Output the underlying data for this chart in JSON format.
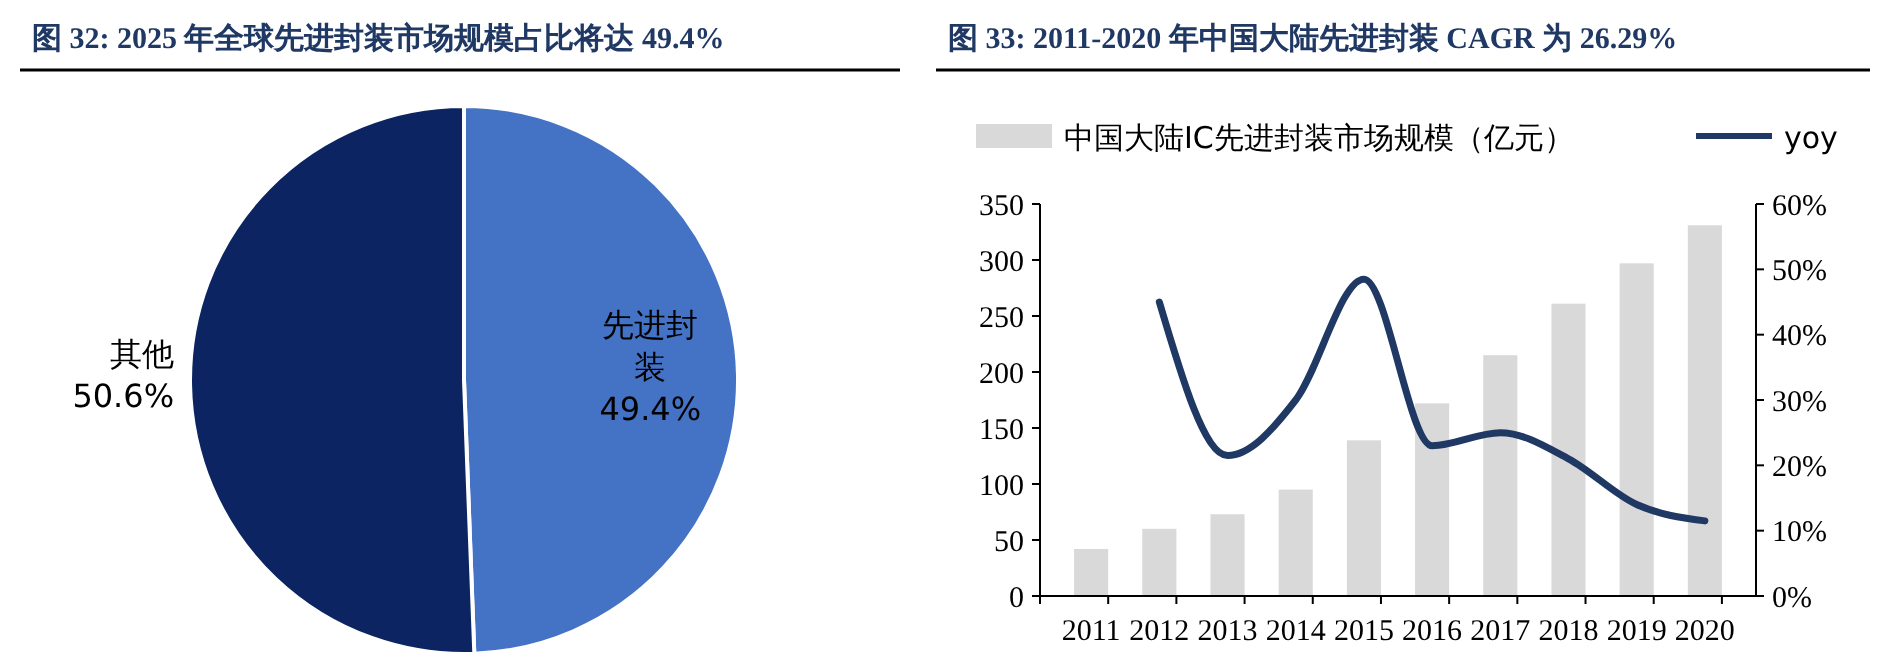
{
  "chart_data": [
    {
      "type": "pie",
      "title": "图 32: 2025 年全球先进封装市场规模占比将达 49.4%",
      "categories": [
        "先进封装",
        "其他"
      ],
      "values": [
        49.4,
        50.6
      ],
      "colors": [
        "#4472c4",
        "#0c2461"
      ],
      "value_labels": [
        "49.4%",
        "50.6%"
      ]
    },
    {
      "type": "bar",
      "title": "图 33:  2011-2020 年中国大陆先进封装 CAGR 为 26.29%",
      "categories": [
        "2011",
        "2012",
        "2013",
        "2014",
        "2015",
        "2016",
        "2017",
        "2018",
        "2019",
        "2020"
      ],
      "legend": "top",
      "ylim": [
        0,
        350
      ],
      "yticks": [
        0,
        50,
        100,
        150,
        200,
        250,
        300,
        350
      ],
      "y2lim": [
        0,
        60
      ],
      "y2ticks": [
        {
          "value": 0,
          "label": "0%"
        },
        {
          "value": 10,
          "label": "10%"
        },
        {
          "value": 20,
          "label": "20%"
        },
        {
          "value": 30,
          "label": "30%"
        },
        {
          "value": 40,
          "label": "40%"
        },
        {
          "value": 50,
          "label": "50%"
        },
        {
          "value": 60,
          "label": "60%"
        }
      ],
      "series": [
        {
          "name": "中国大陆IC先进封装市场规模（亿元）",
          "type": "bar",
          "color": "#d9d9d9",
          "values": [
            42,
            60,
            73,
            95,
            139,
            172,
            215,
            261,
            297,
            331
          ]
        },
        {
          "name": "yoy",
          "type": "line",
          "axis": "y2",
          "color": "#1f3864",
          "values": [
            null,
            45,
            21.5,
            30,
            48.5,
            23,
            25,
            21,
            14,
            11.5
          ]
        }
      ]
    }
  ]
}
